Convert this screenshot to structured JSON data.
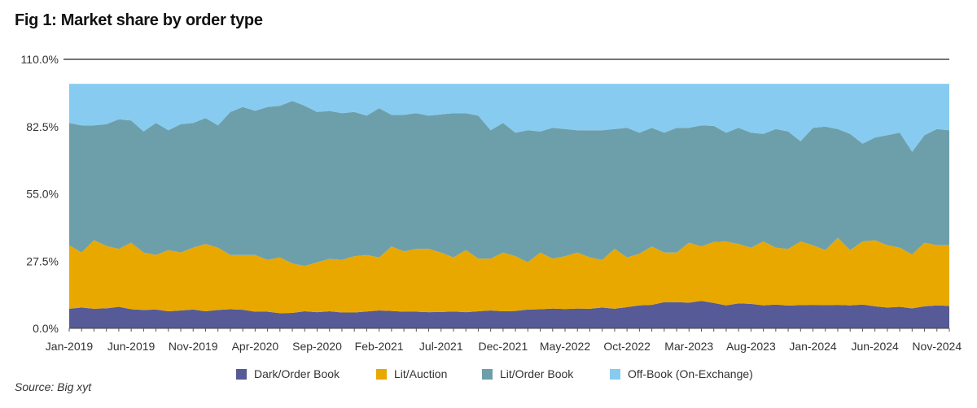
{
  "title": "Fig 1: Market share by order type",
  "source": "Source: Big xyt",
  "chart_data": {
    "type": "area",
    "stacked": true,
    "ylim": [
      0,
      110
    ],
    "yticks": [
      "0.0%",
      "27.5%",
      "55.0%",
      "82.5%",
      "110.0%"
    ],
    "ytick_values": [
      0,
      27.5,
      55,
      82.5,
      110
    ],
    "x": [
      "Jan-2019",
      "Feb-2019",
      "Mar-2019",
      "Apr-2019",
      "May-2019",
      "Jun-2019",
      "Jul-2019",
      "Aug-2019",
      "Sep-2019",
      "Oct-2019",
      "Nov-2019",
      "Dec-2019",
      "Jan-2020",
      "Feb-2020",
      "Mar-2020",
      "Apr-2020",
      "May-2020",
      "Jun-2020",
      "Jul-2020",
      "Aug-2020",
      "Sep-2020",
      "Oct-2020",
      "Nov-2020",
      "Dec-2020",
      "Jan-2021",
      "Feb-2021",
      "Mar-2021",
      "Apr-2021",
      "May-2021",
      "Jun-2021",
      "Jul-2021",
      "Aug-2021",
      "Sep-2021",
      "Oct-2021",
      "Nov-2021",
      "Dec-2021",
      "Jan-2022",
      "Feb-2022",
      "Mar-2022",
      "Apr-2022",
      "May-2022",
      "Jun-2022",
      "Jul-2022",
      "Aug-2022",
      "Sep-2022",
      "Oct-2022",
      "Nov-2022",
      "Dec-2022",
      "Jan-2023",
      "Feb-2023",
      "Mar-2023",
      "Apr-2023",
      "May-2023",
      "Jun-2023",
      "Jul-2023",
      "Aug-2023",
      "Sep-2023",
      "Oct-2023",
      "Nov-2023",
      "Dec-2023",
      "Jan-2024",
      "Feb-2024",
      "Mar-2024",
      "Apr-2024",
      "May-2024",
      "Jun-2024",
      "Jul-2024",
      "Aug-2024",
      "Sep-2024",
      "Oct-2024",
      "Nov-2024",
      "Dec-2024"
    ],
    "xtick_labels": [
      "Jan-2019",
      "Jun-2019",
      "Nov-2019",
      "Apr-2020",
      "Sep-2020",
      "Feb-2021",
      "Jul-2021",
      "Dec-2021",
      "May-2022",
      "Oct-2022",
      "Mar-2023",
      "Aug-2023",
      "Jan-2024",
      "Jun-2024",
      "Nov-2024"
    ],
    "series": [
      {
        "name": "Dark/Order Book",
        "color": "#565a96",
        "values": [
          8.0,
          8.5,
          8.0,
          8.2,
          8.8,
          7.8,
          7.5,
          7.7,
          7.0,
          7.3,
          7.7,
          7.0,
          7.5,
          7.8,
          7.6,
          6.8,
          6.8,
          6.2,
          6.3,
          7.0,
          6.6,
          7.0,
          6.5,
          6.5,
          6.9,
          7.3,
          7.1,
          6.8,
          6.8,
          6.6,
          6.7,
          6.9,
          6.6,
          7.0,
          7.3,
          7.0,
          7.1,
          7.7,
          7.8,
          8.1,
          7.9,
          8.1,
          8.0,
          8.5,
          8.0,
          8.7,
          9.4,
          9.6,
          10.7,
          10.7,
          10.5,
          11.2,
          10.4,
          9.4,
          10.2,
          10.0,
          9.4,
          9.7,
          9.3,
          9.5,
          9.6,
          9.5,
          9.6,
          9.4,
          9.7,
          9.0,
          8.5,
          8.8,
          8.2,
          9.0,
          9.4,
          9.2
        ]
      },
      {
        "name": "Lit/Auction",
        "color": "#e8a800",
        "values": [
          26.0,
          22.5,
          28.0,
          25.5,
          23.7,
          27.2,
          23.5,
          22.3,
          25.0,
          23.7,
          25.3,
          27.5,
          25.5,
          22.2,
          22.4,
          23.2,
          21.2,
          22.8,
          20.2,
          18.5,
          20.4,
          21.4,
          21.5,
          23.0,
          23.1,
          21.7,
          26.4,
          24.7,
          25.7,
          25.9,
          24.3,
          22.1,
          25.4,
          21.5,
          21.2,
          24.0,
          22.4,
          19.3,
          23.2,
          20.4,
          21.6,
          22.9,
          21.0,
          19.5,
          24.5,
          20.3,
          21.1,
          23.9,
          20.3,
          20.3,
          24.5,
          22.3,
          24.9,
          26.1,
          24.3,
          23.0,
          26.1,
          23.3,
          23.2,
          26.0,
          24.4,
          22.5,
          27.4,
          22.6,
          25.8,
          27.0,
          25.5,
          24.2,
          22.0,
          26.0,
          24.6,
          24.8
        ]
      },
      {
        "name": "Lit/Order Book",
        "color": "#6d9fab",
        "values": [
          50.0,
          52.0,
          47.0,
          49.8,
          53.0,
          50.0,
          49.5,
          54.0,
          49.0,
          52.5,
          51.0,
          51.5,
          50.0,
          58.5,
          60.5,
          59.0,
          62.5,
          62.0,
          66.5,
          65.5,
          61.5,
          60.5,
          60.0,
          59.0,
          57.0,
          61.0,
          53.8,
          55.8,
          55.5,
          54.5,
          56.5,
          59.0,
          56.0,
          58.5,
          52.5,
          53.0,
          50.5,
          54.0,
          49.5,
          53.5,
          52.0,
          50.0,
          52.0,
          53.0,
          49.0,
          53.0,
          49.5,
          48.5,
          49.0,
          51.0,
          47.0,
          49.5,
          47.5,
          44.5,
          47.5,
          47.0,
          44.0,
          48.5,
          48.0,
          41.0,
          48.0,
          50.5,
          44.5,
          47.5,
          40.0,
          42.0,
          45.0,
          47.0,
          42.0,
          44.0,
          47.5,
          47.0
        ]
      },
      {
        "name": "Off-Book (On-Exchange)",
        "color": "#87cbf0",
        "values": [
          16.0,
          17.0,
          17.0,
          16.5,
          14.5,
          15.0,
          19.5,
          16.0,
          19.0,
          16.5,
          16.0,
          14.0,
          17.0,
          11.5,
          9.5,
          11.0,
          9.5,
          9.0,
          7.0,
          9.0,
          11.5,
          11.1,
          12.0,
          11.5,
          13.0,
          10.0,
          12.7,
          12.7,
          12.0,
          13.0,
          12.5,
          12.0,
          12.0,
          13.0,
          19.0,
          16.0,
          20.0,
          19.0,
          19.5,
          18.0,
          18.5,
          19.0,
          19.0,
          19.0,
          18.5,
          18.0,
          20.0,
          18.0,
          20.0,
          18.0,
          18.0,
          17.0,
          17.2,
          20.0,
          18.0,
          20.0,
          20.5,
          18.5,
          19.5,
          23.5,
          18.0,
          17.5,
          18.5,
          20.5,
          24.5,
          22.0,
          21.0,
          20.0,
          27.8,
          21.0,
          18.5,
          19.0
        ]
      }
    ],
    "legend_position": "bottom",
    "grid": false
  }
}
